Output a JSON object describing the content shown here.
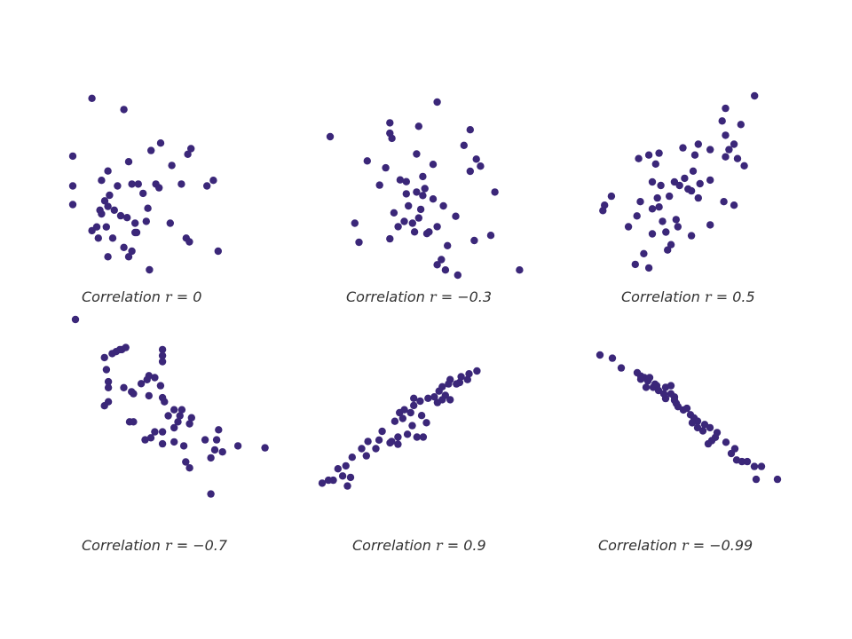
{
  "colors": {
    "point": "#3b2779",
    "caption": "#333333"
  },
  "chart_data": [
    {
      "type": "scatter",
      "caption_prefix": "Correlation",
      "r_symbol": "r",
      "equals": "=",
      "r_value": "0",
      "points": [
        [
          0.12,
          0.92
        ],
        [
          0.32,
          0.86
        ],
        [
          0.0,
          0.61
        ],
        [
          0.49,
          0.64
        ],
        [
          0.55,
          0.68
        ],
        [
          0.72,
          0.62
        ],
        [
          0.74,
          0.65
        ],
        [
          0.88,
          0.48
        ],
        [
          0.84,
          0.45
        ],
        [
          0.68,
          0.46
        ],
        [
          0.62,
          0.56
        ],
        [
          0.35,
          0.58
        ],
        [
          0.22,
          0.53
        ],
        [
          0.18,
          0.48
        ],
        [
          0.0,
          0.45
        ],
        [
          0.41,
          0.46
        ],
        [
          0.44,
          0.41
        ],
        [
          0.52,
          0.46
        ],
        [
          0.37,
          0.46
        ],
        [
          0.28,
          0.45
        ],
        [
          0.23,
          0.4
        ],
        [
          0.2,
          0.37
        ],
        [
          0.17,
          0.32
        ],
        [
          0.22,
          0.34
        ],
        [
          0.26,
          0.32
        ],
        [
          0.0,
          0.35
        ],
        [
          0.3,
          0.29
        ],
        [
          0.47,
          0.33
        ],
        [
          0.34,
          0.28
        ],
        [
          0.39,
          0.25
        ],
        [
          0.46,
          0.26
        ],
        [
          0.4,
          0.2
        ],
        [
          0.54,
          0.44
        ],
        [
          0.61,
          0.25
        ],
        [
          0.21,
          0.23
        ],
        [
          0.15,
          0.23
        ],
        [
          0.12,
          0.21
        ],
        [
          0.16,
          0.17
        ],
        [
          0.25,
          0.17
        ],
        [
          0.32,
          0.12
        ],
        [
          0.37,
          0.1
        ],
        [
          0.39,
          0.2
        ],
        [
          0.71,
          0.17
        ],
        [
          0.73,
          0.15
        ],
        [
          0.91,
          0.1
        ],
        [
          0.22,
          0.07
        ],
        [
          0.35,
          0.07
        ],
        [
          0.48,
          0.0
        ],
        [
          0.18,
          0.3
        ]
      ]
    },
    {
      "type": "scatter",
      "caption_prefix": "Correlation",
      "r_symbol": "r",
      "equals": "=",
      "r_value": "−0.3",
      "points": [
        [
          0.52,
          1.0
        ],
        [
          0.29,
          0.88
        ],
        [
          0.43,
          0.86
        ],
        [
          0.68,
          0.84
        ],
        [
          0.65,
          0.75
        ],
        [
          0.29,
          0.82
        ],
        [
          0.3,
          0.79
        ],
        [
          0.0,
          0.8
        ],
        [
          0.71,
          0.67
        ],
        [
          0.68,
          0.6
        ],
        [
          0.18,
          0.66
        ],
        [
          0.42,
          0.7
        ],
        [
          0.5,
          0.64
        ],
        [
          0.73,
          0.63
        ],
        [
          0.27,
          0.62
        ],
        [
          0.34,
          0.55
        ],
        [
          0.24,
          0.52
        ],
        [
          0.46,
          0.5
        ],
        [
          0.42,
          0.48
        ],
        [
          0.37,
          0.47
        ],
        [
          0.45,
          0.46
        ],
        [
          0.5,
          0.44
        ],
        [
          0.38,
          0.4
        ],
        [
          0.55,
          0.4
        ],
        [
          0.31,
          0.36
        ],
        [
          0.8,
          0.48
        ],
        [
          0.36,
          0.31
        ],
        [
          0.4,
          0.3
        ],
        [
          0.33,
          0.28
        ],
        [
          0.41,
          0.25
        ],
        [
          0.61,
          0.34
        ],
        [
          0.47,
          0.24
        ],
        [
          0.52,
          0.28
        ],
        [
          0.57,
          0.17
        ],
        [
          0.29,
          0.21
        ],
        [
          0.48,
          0.25
        ],
        [
          0.7,
          0.2
        ],
        [
          0.78,
          0.23
        ],
        [
          0.54,
          0.09
        ],
        [
          0.52,
          0.06
        ],
        [
          0.56,
          0.03
        ],
        [
          0.62,
          0.0
        ],
        [
          0.92,
          0.03
        ],
        [
          0.14,
          0.19
        ],
        [
          0.12,
          0.3
        ],
        [
          0.44,
          0.38
        ],
        [
          0.43,
          0.33
        ],
        [
          0.37,
          0.54
        ],
        [
          0.45,
          0.57
        ]
      ]
    },
    {
      "type": "scatter",
      "caption_prefix": "Correlation",
      "r_symbol": "r",
      "equals": "=",
      "r_value": "0.5",
      "points": [
        [
          0.98,
          1.0
        ],
        [
          0.81,
          0.93
        ],
        [
          0.79,
          0.86
        ],
        [
          0.9,
          0.84
        ],
        [
          0.81,
          0.78
        ],
        [
          0.65,
          0.73
        ],
        [
          0.56,
          0.71
        ],
        [
          0.72,
          0.7
        ],
        [
          0.86,
          0.73
        ],
        [
          0.88,
          0.65
        ],
        [
          0.81,
          0.66
        ],
        [
          0.83,
          0.7
        ],
        [
          0.42,
          0.68
        ],
        [
          0.36,
          0.67
        ],
        [
          0.3,
          0.65
        ],
        [
          0.63,
          0.67
        ],
        [
          0.4,
          0.62
        ],
        [
          0.62,
          0.58
        ],
        [
          0.57,
          0.54
        ],
        [
          0.51,
          0.52
        ],
        [
          0.43,
          0.5
        ],
        [
          0.38,
          0.52
        ],
        [
          0.54,
          0.5
        ],
        [
          0.66,
          0.51
        ],
        [
          0.59,
          0.48
        ],
        [
          0.61,
          0.47
        ],
        [
          0.48,
          0.44
        ],
        [
          0.41,
          0.43
        ],
        [
          0.65,
          0.43
        ],
        [
          0.31,
          0.41
        ],
        [
          0.38,
          0.37
        ],
        [
          0.42,
          0.38
        ],
        [
          0.14,
          0.44
        ],
        [
          0.1,
          0.39
        ],
        [
          0.09,
          0.36
        ],
        [
          0.29,
          0.33
        ],
        [
          0.52,
          0.31
        ],
        [
          0.8,
          0.41
        ],
        [
          0.86,
          0.39
        ],
        [
          0.44,
          0.3
        ],
        [
          0.72,
          0.28
        ],
        [
          0.53,
          0.27
        ],
        [
          0.38,
          0.23
        ],
        [
          0.24,
          0.27
        ],
        [
          0.46,
          0.24
        ],
        [
          0.61,
          0.22
        ],
        [
          0.49,
          0.17
        ],
        [
          0.47,
          0.14
        ],
        [
          0.33,
          0.12
        ],
        [
          0.28,
          0.06
        ],
        [
          0.36,
          0.04
        ],
        [
          0.72,
          0.53
        ],
        [
          0.92,
          0.61
        ]
      ]
    },
    {
      "type": "scatter",
      "caption_prefix": "Correlation",
      "r_symbol": "r",
      "equals": "=",
      "r_value": "−0.7",
      "points": [
        [
          0.0,
          1.0
        ],
        [
          0.24,
          0.85
        ],
        [
          0.19,
          0.83
        ],
        [
          0.21,
          0.84
        ],
        [
          0.23,
          0.85
        ],
        [
          0.26,
          0.86
        ],
        [
          0.45,
          0.85
        ],
        [
          0.45,
          0.82
        ],
        [
          0.45,
          0.79
        ],
        [
          0.15,
          0.81
        ],
        [
          0.16,
          0.75
        ],
        [
          0.38,
          0.72
        ],
        [
          0.41,
          0.71
        ],
        [
          0.37,
          0.7
        ],
        [
          0.34,
          0.68
        ],
        [
          0.44,
          0.67
        ],
        [
          0.17,
          0.69
        ],
        [
          0.17,
          0.66
        ],
        [
          0.25,
          0.66
        ],
        [
          0.29,
          0.64
        ],
        [
          0.3,
          0.63
        ],
        [
          0.38,
          0.62
        ],
        [
          0.45,
          0.61
        ],
        [
          0.46,
          0.59
        ],
        [
          0.17,
          0.59
        ],
        [
          0.15,
          0.57
        ],
        [
          0.51,
          0.55
        ],
        [
          0.55,
          0.55
        ],
        [
          0.54,
          0.52
        ],
        [
          0.48,
          0.52
        ],
        [
          0.6,
          0.51
        ],
        [
          0.53,
          0.49
        ],
        [
          0.28,
          0.49
        ],
        [
          0.3,
          0.49
        ],
        [
          0.59,
          0.48
        ],
        [
          0.51,
          0.46
        ],
        [
          0.45,
          0.44
        ],
        [
          0.41,
          0.44
        ],
        [
          0.39,
          0.41
        ],
        [
          0.36,
          0.4
        ],
        [
          0.51,
          0.39
        ],
        [
          0.45,
          0.38
        ],
        [
          0.56,
          0.37
        ],
        [
          0.73,
          0.4
        ],
        [
          0.74,
          0.45
        ],
        [
          0.67,
          0.4
        ],
        [
          0.72,
          0.35
        ],
        [
          0.76,
          0.34
        ],
        [
          0.84,
          0.37
        ],
        [
          0.98,
          0.36
        ],
        [
          0.57,
          0.29
        ],
        [
          0.59,
          0.26
        ],
        [
          0.7,
          0.31
        ],
        [
          0.7,
          0.13
        ]
      ]
    },
    {
      "type": "scatter",
      "caption_prefix": "Correlation",
      "r_symbol": "r",
      "equals": "=",
      "r_value": "0.9",
      "points": [
        [
          0.98,
          1.0
        ],
        [
          0.93,
          0.98
        ],
        [
          0.88,
          0.96
        ],
        [
          0.92,
          0.94
        ],
        [
          0.81,
          0.94
        ],
        [
          0.87,
          0.92
        ],
        [
          0.8,
          0.91
        ],
        [
          0.76,
          0.89
        ],
        [
          0.74,
          0.86
        ],
        [
          0.78,
          0.83
        ],
        [
          0.71,
          0.82
        ],
        [
          0.67,
          0.81
        ],
        [
          0.58,
          0.81
        ],
        [
          0.81,
          0.8
        ],
        [
          0.76,
          0.8
        ],
        [
          0.73,
          0.78
        ],
        [
          0.62,
          0.79
        ],
        [
          0.58,
          0.76
        ],
        [
          0.52,
          0.73
        ],
        [
          0.49,
          0.71
        ],
        [
          0.56,
          0.71
        ],
        [
          0.46,
          0.65
        ],
        [
          0.63,
          0.69
        ],
        [
          0.57,
          0.62
        ],
        [
          0.54,
          0.56
        ],
        [
          0.38,
          0.58
        ],
        [
          0.48,
          0.54
        ],
        [
          0.66,
          0.64
        ],
        [
          0.6,
          0.54
        ],
        [
          0.64,
          0.54
        ],
        [
          0.43,
          0.5
        ],
        [
          0.48,
          0.49
        ],
        [
          0.36,
          0.52
        ],
        [
          0.29,
          0.51
        ],
        [
          0.34,
          0.46
        ],
        [
          0.25,
          0.46
        ],
        [
          0.28,
          0.41
        ],
        [
          0.19,
          0.4
        ],
        [
          0.15,
          0.34
        ],
        [
          0.1,
          0.32
        ],
        [
          0.13,
          0.27
        ],
        [
          0.18,
          0.26
        ],
        [
          0.07,
          0.24
        ],
        [
          0.04,
          0.24
        ],
        [
          0.0,
          0.22
        ],
        [
          0.16,
          0.2
        ],
        [
          0.44,
          0.51
        ],
        [
          0.51,
          0.67
        ],
        [
          0.85,
          0.91
        ]
      ]
    },
    {
      "type": "scatter",
      "caption_prefix": "Correlation",
      "r_symbol": "r",
      "equals": "=",
      "r_value": "−0.99",
      "points": [
        [
          0.0,
          1.0
        ],
        [
          0.07,
          0.98
        ],
        [
          0.12,
          0.92
        ],
        [
          0.21,
          0.89
        ],
        [
          0.23,
          0.87
        ],
        [
          0.25,
          0.86
        ],
        [
          0.27,
          0.84
        ],
        [
          0.23,
          0.85
        ],
        [
          0.26,
          0.8
        ],
        [
          0.3,
          0.8
        ],
        [
          0.32,
          0.81
        ],
        [
          0.37,
          0.8
        ],
        [
          0.4,
          0.81
        ],
        [
          0.33,
          0.78
        ],
        [
          0.4,
          0.76
        ],
        [
          0.42,
          0.74
        ],
        [
          0.37,
          0.73
        ],
        [
          0.42,
          0.72
        ],
        [
          0.43,
          0.7
        ],
        [
          0.44,
          0.68
        ],
        [
          0.47,
          0.66
        ],
        [
          0.51,
          0.63
        ],
        [
          0.53,
          0.61
        ],
        [
          0.55,
          0.59
        ],
        [
          0.52,
          0.58
        ],
        [
          0.55,
          0.55
        ],
        [
          0.59,
          0.57
        ],
        [
          0.58,
          0.53
        ],
        [
          0.62,
          0.55
        ],
        [
          0.66,
          0.52
        ],
        [
          0.65,
          0.49
        ],
        [
          0.63,
          0.47
        ],
        [
          0.61,
          0.45
        ],
        [
          0.71,
          0.46
        ],
        [
          0.76,
          0.42
        ],
        [
          0.74,
          0.39
        ],
        [
          0.77,
          0.35
        ],
        [
          0.8,
          0.34
        ],
        [
          0.83,
          0.34
        ],
        [
          0.87,
          0.31
        ],
        [
          0.91,
          0.31
        ],
        [
          0.88,
          0.23
        ],
        [
          1.0,
          0.23
        ],
        [
          0.28,
          0.86
        ],
        [
          0.31,
          0.82
        ],
        [
          0.36,
          0.76
        ],
        [
          0.49,
          0.67
        ]
      ]
    }
  ]
}
